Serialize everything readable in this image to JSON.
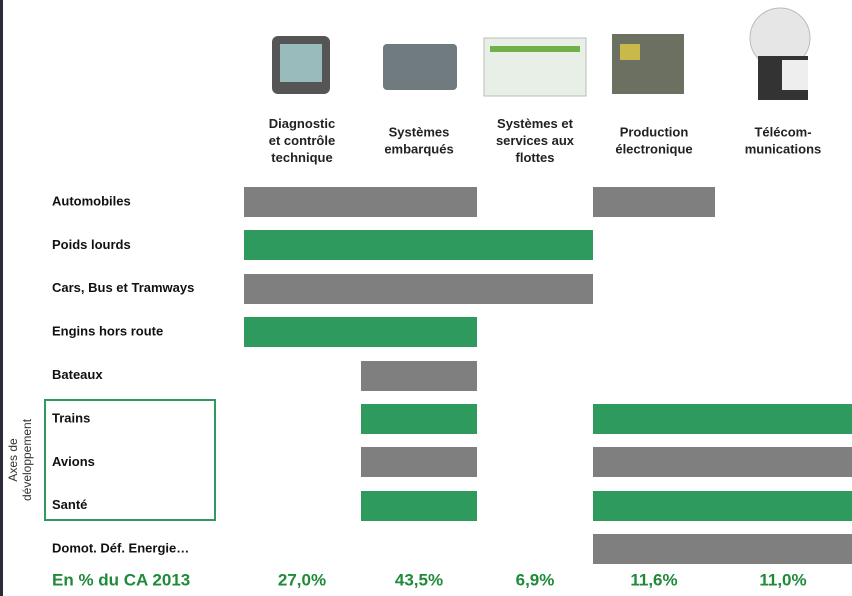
{
  "columns": [
    {
      "label": [
        "Diagnostic",
        "et contrôle",
        "technique"
      ]
    },
    {
      "label": [
        "Systèmes",
        "embarqués"
      ]
    },
    {
      "label": [
        "Systèmes et",
        "services aux",
        "flottes"
      ]
    },
    {
      "label": [
        "Production",
        "électronique"
      ]
    },
    {
      "label": [
        "Télécom-",
        "munications"
      ]
    }
  ],
  "rows": [
    "Automobiles",
    "Poids lourds",
    "Cars, Bus et Tramways",
    "Engins hors route",
    "Bateaux",
    "Trains",
    "Avions",
    "Santé",
    "Domot. Déf. Energie…"
  ],
  "side_label": [
    "Axes de",
    "développement"
  ],
  "footer": {
    "label": "En % du CA  2013",
    "values": [
      "27,0%",
      "43,5%",
      "6,9%",
      "11,6%",
      "11,0%"
    ]
  }
}
